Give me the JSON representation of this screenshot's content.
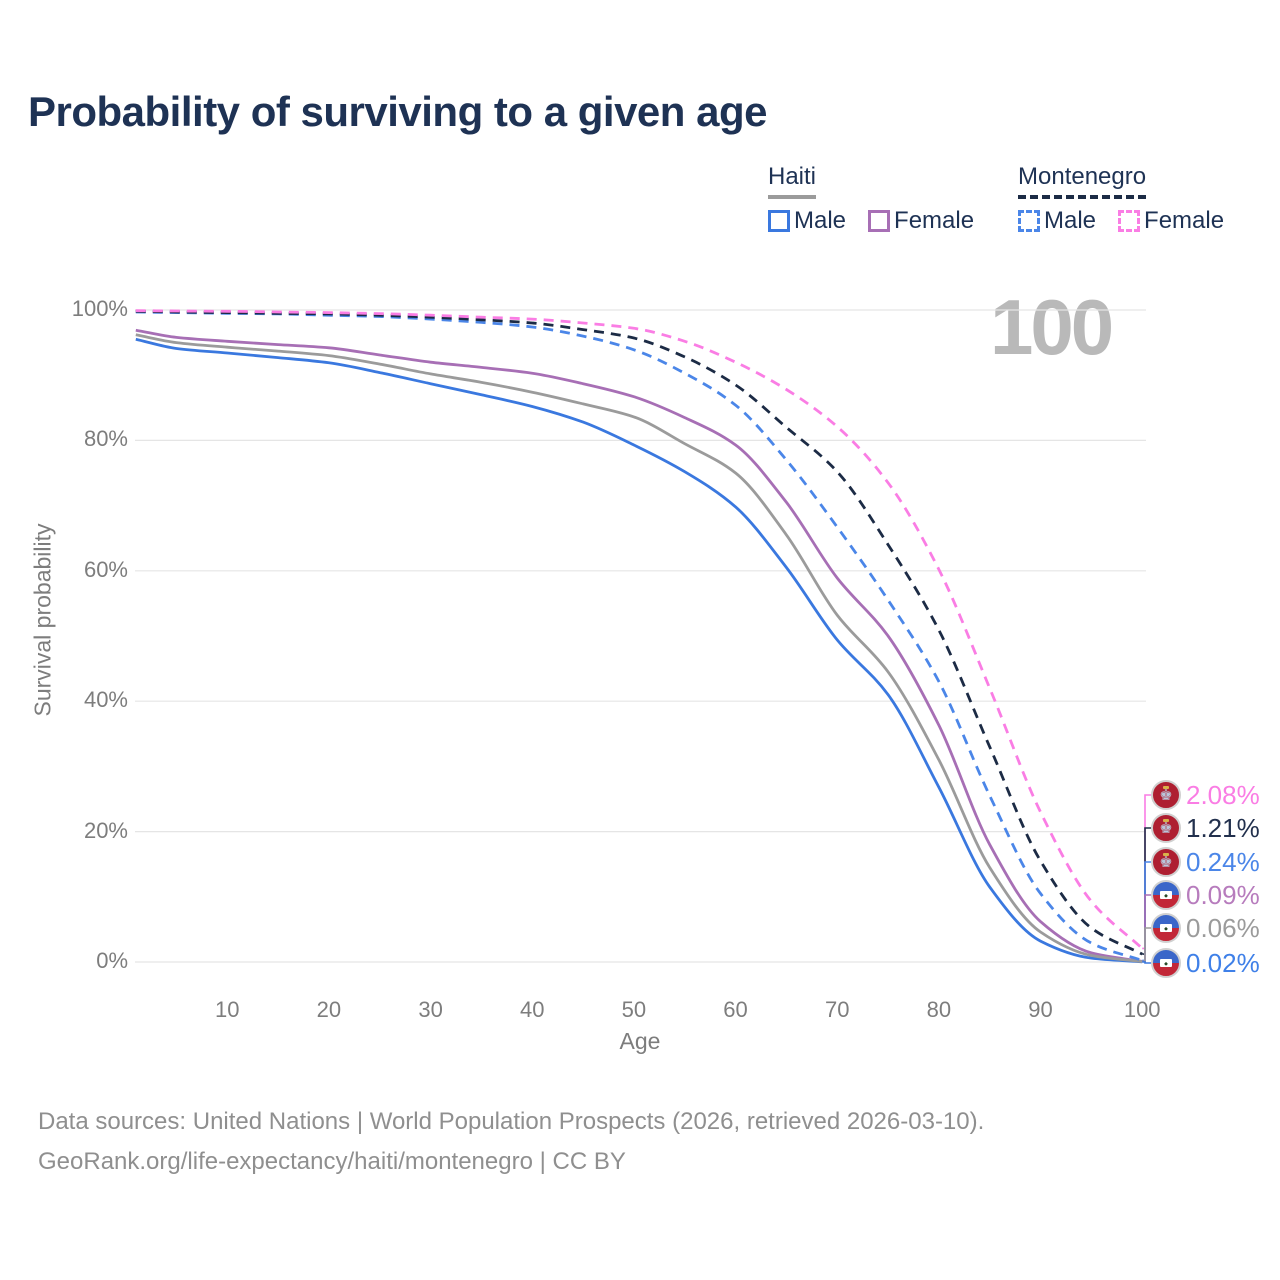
{
  "header": {
    "title": "Probability of surviving to a given age"
  },
  "legend": {
    "groups": [
      {
        "name": "Haiti",
        "line_style": "solid",
        "line_color": "#9b9b9b",
        "items": [
          {
            "label": "Male",
            "color": "#3a78df"
          },
          {
            "label": "Female",
            "color": "#a76fb5"
          }
        ]
      },
      {
        "name": "Montenegro",
        "line_style": "dashed",
        "line_color": "#1c2b45",
        "items": [
          {
            "label": "Male",
            "color": "#4b86e8"
          },
          {
            "label": "Female",
            "color": "#fa7de4"
          }
        ]
      }
    ]
  },
  "ui": {
    "watermark": "100"
  },
  "chart_data": {
    "type": "line",
    "title": "Probability of surviving to a given age",
    "xlabel": "Age",
    "ylabel": "Survival probability",
    "xlim": [
      0,
      100
    ],
    "ylim": [
      0,
      100
    ],
    "grid": "horizontal",
    "legend_position": "top-right",
    "x_ticks": [
      10,
      20,
      30,
      40,
      50,
      60,
      70,
      80,
      90,
      100
    ],
    "y_ticks": [
      {
        "value": 0,
        "label": "0%"
      },
      {
        "value": 20,
        "label": "20%"
      },
      {
        "value": 40,
        "label": "40%"
      },
      {
        "value": 60,
        "label": "60%"
      },
      {
        "value": 80,
        "label": "80%"
      },
      {
        "value": 100,
        "label": "100%"
      }
    ],
    "ages": [
      1,
      5,
      10,
      15,
      20,
      25,
      30,
      35,
      40,
      45,
      50,
      55,
      60,
      65,
      70,
      75,
      80,
      85,
      90,
      95,
      100
    ],
    "series": [
      {
        "name": "Haiti — Male",
        "country": "Haiti",
        "sex": "Male",
        "color": "#3a78df",
        "dashed": false,
        "end_label": "0.02%",
        "values": [
          95.5,
          94.1,
          93.4,
          92.7,
          91.9,
          90.4,
          88.7,
          87.0,
          85.2,
          82.8,
          79.3,
          75.2,
          69.8,
          60.5,
          49.4,
          41.0,
          26.8,
          11.5,
          3.2,
          0.6,
          0.02
        ]
      },
      {
        "name": "Haiti — Female",
        "country": "Haiti",
        "sex": "Female",
        "color": "#a76fb5",
        "dashed": false,
        "end_label": "0.09%",
        "values": [
          96.9,
          95.8,
          95.2,
          94.7,
          94.2,
          93.1,
          92.0,
          91.2,
          90.3,
          88.7,
          86.7,
          83.5,
          79.3,
          70.5,
          58.9,
          50.0,
          36.3,
          18.0,
          6.2,
          1.4,
          0.09
        ]
      },
      {
        "name": "Haiti — Both sexes",
        "country": "Haiti",
        "sex": "Both sexes",
        "color": "#9b9b9b",
        "dashed": false,
        "end_label": "0.06%",
        "values": [
          96.2,
          95.0,
          94.3,
          93.7,
          93.0,
          91.7,
          90.2,
          88.9,
          87.4,
          85.6,
          83.6,
          79.5,
          75.0,
          65.5,
          53.2,
          44.5,
          31.0,
          14.5,
          4.6,
          1.0,
          0.06
        ]
      },
      {
        "name": "Montenegro — Male",
        "country": "Montenegro",
        "sex": "Male",
        "color": "#4b86e8",
        "dashed": true,
        "end_label": "0.24%",
        "values": [
          99.7,
          99.6,
          99.5,
          99.4,
          99.2,
          99.0,
          98.6,
          98.1,
          97.4,
          96.0,
          93.9,
          90.3,
          85.4,
          77.0,
          66.7,
          55.5,
          43.0,
          25.5,
          10.5,
          2.9,
          0.24
        ]
      },
      {
        "name": "Montenegro — Both sexes",
        "country": "Montenegro",
        "sex": "Both sexes",
        "color": "#1c2b45",
        "dashed": true,
        "end_label": "1.21%",
        "values": [
          99.8,
          99.7,
          99.6,
          99.5,
          99.4,
          99.2,
          98.9,
          98.5,
          98.0,
          97.0,
          95.7,
          92.8,
          88.5,
          82.0,
          75.2,
          64.0,
          50.9,
          33.0,
          15.5,
          5.2,
          1.21
        ]
      },
      {
        "name": "Montenegro — Female",
        "country": "Montenegro",
        "sex": "Female",
        "color": "#fa7de4",
        "dashed": true,
        "end_label": "2.08%",
        "values": [
          99.9,
          99.85,
          99.8,
          99.7,
          99.6,
          99.45,
          99.2,
          98.9,
          98.6,
          98.0,
          97.2,
          95.2,
          92.0,
          87.8,
          82.1,
          73.5,
          60.2,
          42.0,
          23.0,
          9.3,
          2.08
        ]
      }
    ]
  },
  "end_labels": [
    {
      "series": "Montenegro — Female",
      "value": "2.08%",
      "color": "#fa7de4",
      "flag": "montenegro",
      "icon": "montenegro-flag-icon"
    },
    {
      "series": "Montenegro — Both sexes",
      "value": "1.21%",
      "color": "#22304d",
      "flag": "montenegro",
      "icon": "montenegro-flag-icon"
    },
    {
      "series": "Montenegro — Male",
      "value": "0.24%",
      "color": "#4b86e8",
      "flag": "montenegro",
      "icon": "montenegro-flag-icon"
    },
    {
      "series": "Haiti — Female",
      "value": "0.09%",
      "color": "#b77cbd",
      "flag": "haiti",
      "icon": "haiti-flag-icon"
    },
    {
      "series": "Haiti — Both sexes",
      "value": "0.06%",
      "color": "#9b9b9b",
      "flag": "haiti",
      "icon": "haiti-flag-icon"
    },
    {
      "series": "Haiti — Male",
      "value": "0.02%",
      "color": "#3f80e8",
      "flag": "haiti",
      "icon": "haiti-flag-icon"
    }
  ],
  "footer": {
    "line1": "Data sources: United Nations | World Population Prospects (2026, retrieved 2026-03-10).",
    "line2": "GeoRank.org/life-expectancy/haiti/montenegro | CC BY"
  }
}
